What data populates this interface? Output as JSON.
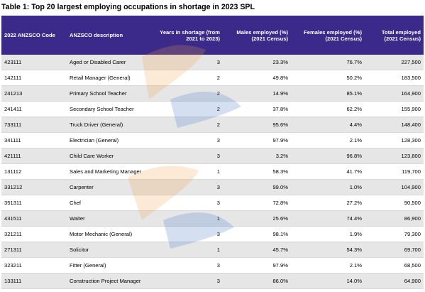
{
  "caption": "Table 1: Top 20 largest employing occupations in shortage in 2023 SPL",
  "headers": {
    "code": "2022 ANZSCO Code",
    "desc": "ANZSCO description",
    "years": "Years in shortage (from 2021 to 2023)",
    "males": "Males employed (%) (2021 Census)",
    "females": "Females employed (%) (2021 Census)",
    "total": "Total employed (2021 Census)"
  },
  "rows": [
    {
      "code": "423111",
      "desc": "Aged or Disabled Carer",
      "years": "3",
      "males": "23.3%",
      "females": "76.7%",
      "total": "227,500"
    },
    {
      "code": "142111",
      "desc": "Retail Manager (General)",
      "years": "2",
      "males": "49.8%",
      "females": "50.2%",
      "total": "183,500"
    },
    {
      "code": "241213",
      "desc": "Primary School Teacher",
      "years": "2",
      "males": "14.9%",
      "females": "85.1%",
      "total": "164,900"
    },
    {
      "code": "241411",
      "desc": "Secondary School Teacher",
      "years": "2",
      "males": "37.8%",
      "females": "62.2%",
      "total": "155,900"
    },
    {
      "code": "733111",
      "desc": "Truck Driver (General)",
      "years": "2",
      "males": "95.6%",
      "females": "4.4%",
      "total": "148,400"
    },
    {
      "code": "341111",
      "desc": "Electrician (General)",
      "years": "3",
      "males": "97.9%",
      "females": "2.1%",
      "total": "128,300"
    },
    {
      "code": "421111",
      "desc": "Child Care Worker",
      "years": "3",
      "males": "3.2%",
      "females": "96.8%",
      "total": "123,800"
    },
    {
      "code": "131112",
      "desc": "Sales and Marketing Manager",
      "years": "1",
      "males": "58.3%",
      "females": "41.7%",
      "total": "119,700"
    },
    {
      "code": "331212",
      "desc": "Carpenter",
      "years": "3",
      "males": "99.0%",
      "females": "1.0%",
      "total": "104,900"
    },
    {
      "code": "351311",
      "desc": "Chef",
      "years": "3",
      "males": "72.8%",
      "females": "27.2%",
      "total": "90,500"
    },
    {
      "code": "431511",
      "desc": "Waiter",
      "years": "1",
      "males": "25.6%",
      "females": "74.4%",
      "total": "86,900"
    },
    {
      "code": "321211",
      "desc": "Motor Mechanic (General)",
      "years": "3",
      "males": "98.1%",
      "females": "1.9%",
      "total": "79,300"
    },
    {
      "code": "271311",
      "desc": "Solicitor",
      "years": "1",
      "males": "45.7%",
      "females": "54.3%",
      "total": "69,700"
    },
    {
      "code": "323211",
      "desc": "Fitter (General)",
      "years": "3",
      "males": "97.9%",
      "females": "2.1%",
      "total": "68,500"
    },
    {
      "code": "133111",
      "desc": "Construction Project Manager",
      "years": "3",
      "males": "86.0%",
      "females": "14.0%",
      "total": "64,900"
    }
  ],
  "colors": {
    "header_bg": "#3b2a8a",
    "watermark_orange": "#f2a14a",
    "watermark_blue": "#3e73c7"
  }
}
